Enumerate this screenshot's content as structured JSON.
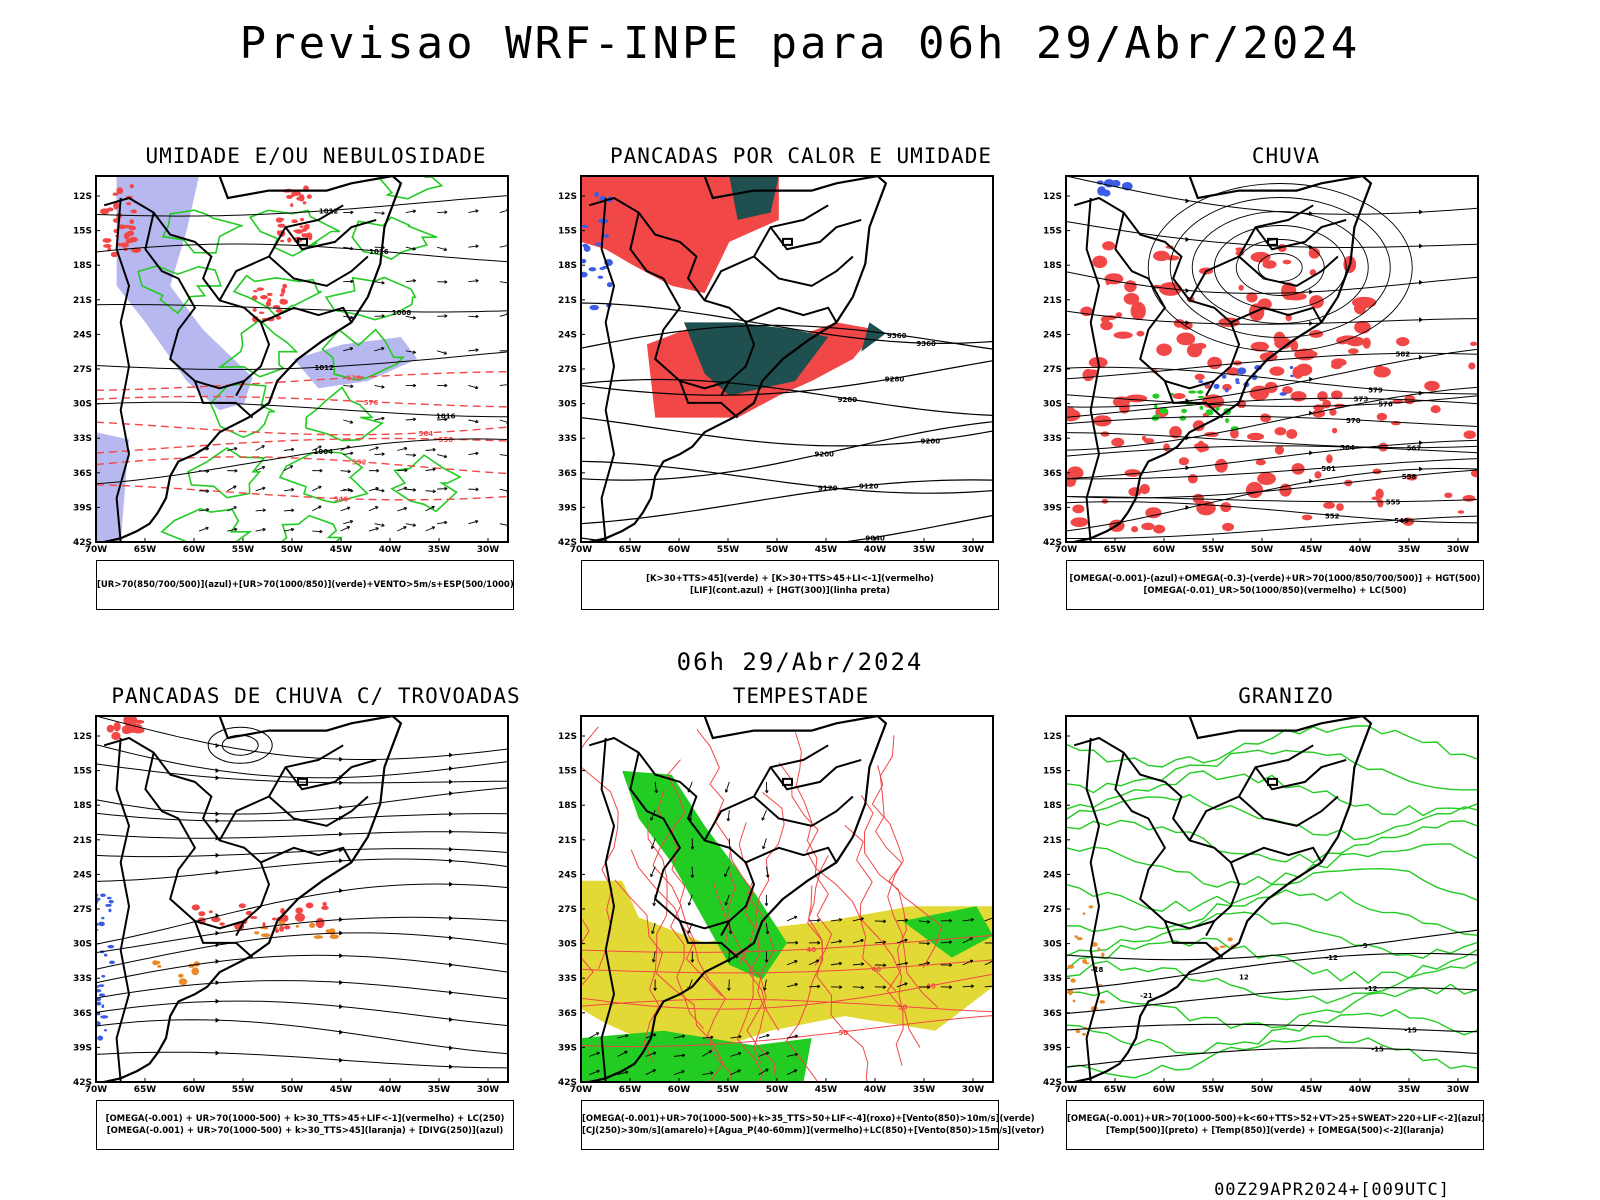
{
  "main_title": "Previsao WRF-INPE  para 06h 29/Abr/2024",
  "mid_title": "06h 29/Abr/2024",
  "footer": "00Z29APR2024+[009UTC]",
  "lat_labels": [
    "12S",
    "15S",
    "18S",
    "21S",
    "24S",
    "27S",
    "30S",
    "33S",
    "36S",
    "39S",
    "42S"
  ],
  "lon_labels": [
    "70W",
    "65W",
    "60W",
    "55W",
    "50W",
    "45W",
    "40W",
    "35W",
    "30W"
  ],
  "panels": [
    {
      "title": "UMIDADE E/OU NEBULOSIDADE",
      "legend": [
        "[UR>70(850/700/500)](azul)+[UR>70(1000/850)](verde)+VENTO>5m/s+ESP(500/1000)"
      ],
      "contour_labels": [
        "1012",
        "1016",
        "1008",
        "1012",
        "1016",
        "1004",
        "570",
        "576",
        "564",
        "558",
        "552",
        "546"
      ]
    },
    {
      "title": "PANCADAS POR CALOR E UMIDADE",
      "legend": [
        "[K>30+TTS>45](verde) + [K>30+TTS>45+LI<-1](vermelho)",
        "[LIF](cont.azul) + [HGT(300)](linha preta)"
      ],
      "contour_labels": [
        "9680",
        "9680",
        "9680",
        "9600",
        "9600",
        "9520",
        "9520",
        "9440",
        "9440",
        "9360",
        "9360",
        "9280",
        "9280",
        "9200",
        "9200",
        "9120",
        "9120",
        "9040"
      ]
    },
    {
      "title": "CHUVA",
      "legend": [
        "[OMEGA(-0.001)-(azul)+OMEGA(-0.3)-(verde)+UR>70(1000/850/700/500)] + HGT(500)",
        "[OMEGA(-0.01)_UR>50(1000/850)(vermelho) + LC(500)"
      ],
      "contour_labels": [
        "585",
        "588",
        "582",
        "579",
        "576",
        "573",
        "570",
        "567",
        "564",
        "561",
        "558",
        "555",
        "552",
        "549"
      ]
    },
    {
      "title": "PANCADAS DE CHUVA C/ TROVOADAS",
      "legend": [
        "[OMEGA(-0.001) + UR>70(1000-500) + k>30_TTS>45+LIF<-1](vermelho) + LC(250)",
        "[OMEGA(-0.001) + UR>70(1000-500) + k>30_TTS>45](laranja) + [DIVG(250)](azul)"
      ],
      "contour_labels": []
    },
    {
      "title": "TEMPESTADE",
      "legend": [
        "[OMEGA(-0.001)+UR>70(1000-500)+k>35_TTS>50+LIF<-4](roxo)+[Vento(850)>10m/s](verde)",
        "[CJ(250)>30m/s](amarelo)+[Agua_P(40-60mm)](vermelho)+LC(850)+[Vento(850)>15m/s](vetor)"
      ],
      "contour_labels": [
        "40",
        "40",
        "40",
        "50",
        "50"
      ]
    },
    {
      "title": "GRANIZO",
      "legend": [
        "[OMEGA(-0.001)+UR>70(1000-500)+k<60+TTS>52+VT>25+SWEAT>220+LIF<-2](azul)",
        "[Temp(500)](preto) + [Temp(850)](verde) + [OMEGA(500)<-2](laranja)"
      ],
      "contour_labels": [
        "-9",
        "-12",
        "-12",
        "-15",
        "-15",
        "-18",
        "-21",
        "12",
        "15",
        "18"
      ]
    }
  ],
  "colors": {
    "red": "#f24747",
    "blue": "#3d5ce6",
    "green": "#22cc22",
    "lavender": "#b8b8f0",
    "dark_teal": "#1f4f4f",
    "yellow": "#e3d936",
    "orange": "#ea8a2a",
    "black": "#000000"
  }
}
